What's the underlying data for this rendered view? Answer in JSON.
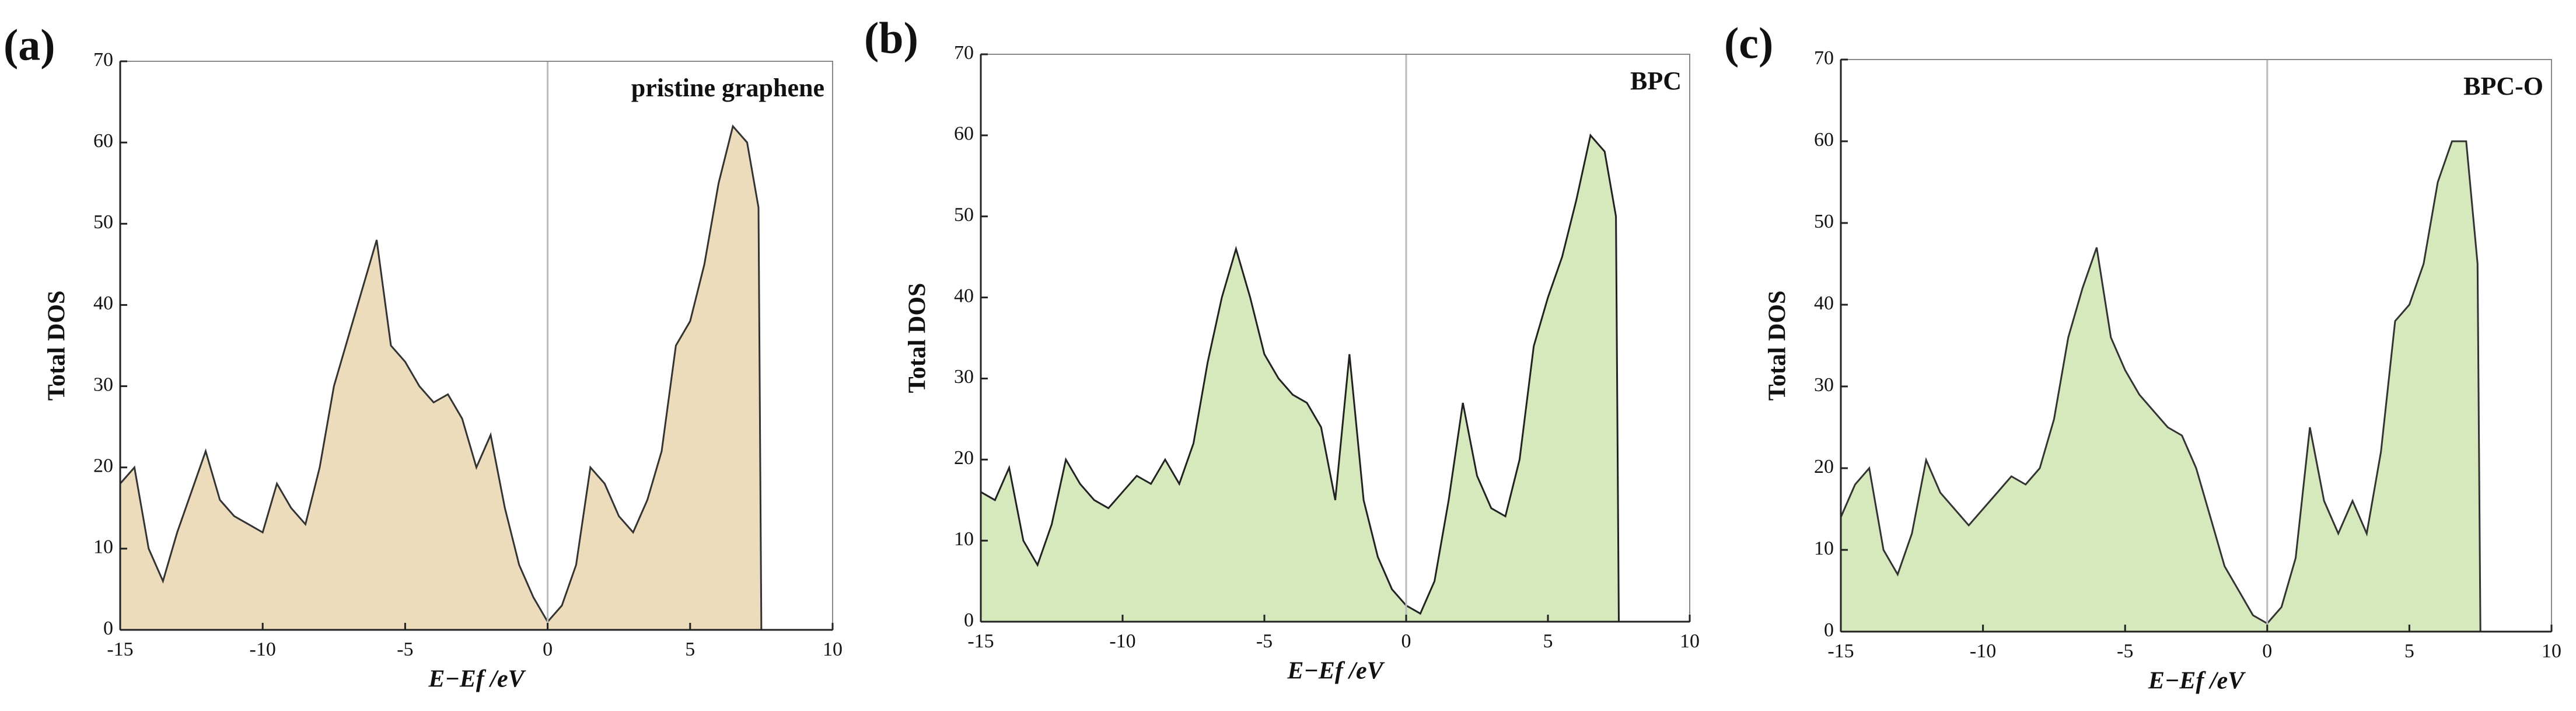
{
  "chart_data": [
    {
      "type": "area",
      "panel_label": "(a)",
      "annotation": "pristine graphene",
      "ylabel": "Total DOS",
      "xlabel": "E−Ef /eV",
      "color": "#ecdcbc",
      "line_color": "#333333",
      "x": [
        -15,
        -14.5,
        -14,
        -13.5,
        -13,
        -12.5,
        -12,
        -11.5,
        -11,
        -10.5,
        -10,
        -9.5,
        -9,
        -8.5,
        -8,
        -7.5,
        -7,
        -6.5,
        -6,
        -5.5,
        -5,
        -4.5,
        -4,
        -3.5,
        -3,
        -2.5,
        -2,
        -1.5,
        -1,
        -0.5,
        0,
        0.5,
        1,
        1.5,
        2,
        2.5,
        3,
        3.5,
        4,
        4.5,
        5,
        5.5,
        6,
        6.5,
        7,
        7.4,
        7.5
      ],
      "values": [
        18,
        20,
        10,
        6,
        12,
        17,
        22,
        16,
        14,
        13,
        12,
        18,
        15,
        13,
        20,
        30,
        36,
        42,
        48,
        35,
        33,
        30,
        28,
        29,
        26,
        20,
        24,
        15,
        8,
        4,
        1,
        3,
        8,
        20,
        18,
        14,
        12,
        16,
        22,
        35,
        38,
        45,
        55,
        62,
        60,
        52,
        0
      ],
      "xlim": [
        -15,
        10
      ],
      "xticks": [
        -15,
        -10,
        -5,
        0,
        5,
        10
      ],
      "ylim": [
        0,
        70
      ],
      "yticks": [
        0,
        10,
        20,
        30,
        40,
        50,
        60,
        70
      ],
      "reference_line": 0
    },
    {
      "type": "area",
      "panel_label": "(b)",
      "annotation": "BPC",
      "ylabel": "Total DOS",
      "xlabel": "E−Ef /eV",
      "color": "#d5e9bc",
      "line_color": "#222222",
      "x": [
        -15,
        -14.5,
        -14,
        -13.5,
        -13,
        -12.5,
        -12,
        -11.5,
        -11,
        -10.5,
        -10,
        -9.5,
        -9,
        -8.5,
        -8,
        -7.5,
        -7,
        -6.5,
        -6,
        -5.5,
        -5,
        -4.5,
        -4,
        -3.5,
        -3,
        -2.5,
        -2,
        -1.5,
        -1,
        -0.5,
        0,
        0.5,
        1,
        1.5,
        2,
        2.5,
        3,
        3.5,
        4,
        4.5,
        5,
        5.5,
        6,
        6.5,
        7,
        7.4,
        7.5
      ],
      "values": [
        16,
        15,
        19,
        10,
        7,
        12,
        20,
        17,
        15,
        14,
        16,
        18,
        17,
        20,
        17,
        22,
        32,
        40,
        46,
        40,
        33,
        30,
        28,
        27,
        24,
        15,
        33,
        15,
        8,
        4,
        2,
        1,
        5,
        15,
        27,
        18,
        14,
        13,
        20,
        34,
        40,
        45,
        52,
        60,
        58,
        50,
        0
      ],
      "xlim": [
        -15,
        10
      ],
      "xticks": [
        -15,
        -10,
        -5,
        0,
        5,
        10
      ],
      "ylim": [
        0,
        70
      ],
      "yticks": [
        0,
        10,
        20,
        30,
        40,
        50,
        60,
        70
      ],
      "reference_line": 0
    },
    {
      "type": "area",
      "panel_label": "(c)",
      "annotation": "BPC-O",
      "ylabel": "Total DOS",
      "xlabel": "E−Ef /eV",
      "color": "#d5e9bc",
      "line_color": "#333333",
      "x": [
        -15,
        -14.5,
        -14,
        -13.5,
        -13,
        -12.5,
        -12,
        -11.5,
        -11,
        -10.5,
        -10,
        -9.5,
        -9,
        -8.5,
        -8,
        -7.5,
        -7,
        -6.5,
        -6,
        -5.5,
        -5,
        -4.5,
        -4,
        -3.5,
        -3,
        -2.5,
        -2,
        -1.5,
        -1,
        -0.5,
        0,
        0.5,
        1,
        1.5,
        2,
        2.5,
        3,
        3.5,
        4,
        4.5,
        5,
        5.5,
        6,
        6.5,
        7,
        7.4,
        7.5
      ],
      "values": [
        14,
        18,
        20,
        10,
        7,
        12,
        21,
        17,
        15,
        13,
        15,
        17,
        19,
        18,
        20,
        26,
        36,
        42,
        47,
        36,
        32,
        29,
        27,
        25,
        24,
        20,
        14,
        8,
        5,
        2,
        1,
        3,
        9,
        25,
        16,
        12,
        16,
        12,
        22,
        38,
        40,
        45,
        55,
        60,
        60,
        45,
        0
      ],
      "xlim": [
        -15,
        10
      ],
      "xticks": [
        -15,
        -10,
        -5,
        0,
        5,
        10
      ],
      "ylim": [
        0,
        70
      ],
      "yticks": [
        0,
        10,
        20,
        30,
        40,
        50,
        60,
        70
      ],
      "reference_line": 0
    }
  ]
}
